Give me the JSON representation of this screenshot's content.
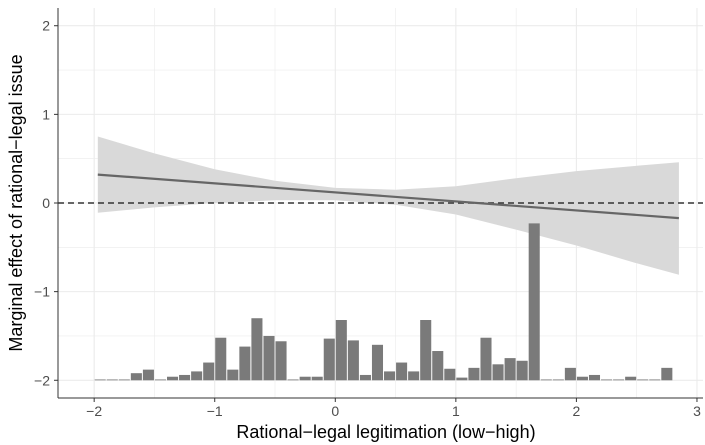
{
  "chart_data": {
    "type": "line",
    "title": "",
    "xlabel": "Rational−legal legitimation (low−high)",
    "ylabel": "Marginal effect of rational−legal issue",
    "xlim": [
      -2.3,
      3.05
    ],
    "ylim": [
      -2.2,
      2.2
    ],
    "x_ticks": [
      -2,
      -1,
      0,
      1,
      2,
      3
    ],
    "x_tick_labels": [
      "−2",
      "−1",
      "0",
      "1",
      "2",
      "3"
    ],
    "y_ticks": [
      -2,
      -1,
      0,
      1,
      2
    ],
    "y_tick_labels": [
      "−2",
      "−1",
      "0",
      "1",
      "2"
    ],
    "grid": true,
    "reference_line": {
      "y": 0,
      "style": "dashed"
    },
    "series": [
      {
        "type": "line",
        "x": [
          -1.97,
          2.85
        ],
        "y": [
          0.32,
          -0.17
        ]
      }
    ],
    "confidence_band": {
      "x": [
        -1.97,
        -1.5,
        -1.0,
        -0.5,
        0.0,
        0.5,
        1.0,
        1.5,
        2.0,
        2.5,
        2.85
      ],
      "upper": [
        0.75,
        0.56,
        0.38,
        0.25,
        0.17,
        0.15,
        0.19,
        0.28,
        0.36,
        0.42,
        0.46
      ],
      "lower": [
        -0.11,
        -0.05,
        0.0,
        0.03,
        0.03,
        -0.02,
        -0.13,
        -0.3,
        -0.48,
        -0.68,
        -0.81
      ]
    },
    "histogram": {
      "bin_width": 0.1,
      "baseline_y": -2.0,
      "x": [
        -1.95,
        -1.85,
        -1.75,
        -1.65,
        -1.55,
        -1.45,
        -1.35,
        -1.25,
        -1.15,
        -1.05,
        -0.95,
        -0.85,
        -0.75,
        -0.65,
        -0.55,
        -0.45,
        -0.35,
        -0.25,
        -0.15,
        -0.05,
        0.05,
        0.15,
        0.25,
        0.35,
        0.45,
        0.55,
        0.65,
        0.75,
        0.85,
        0.95,
        1.05,
        1.15,
        1.25,
        1.35,
        1.45,
        1.55,
        1.65,
        1.75,
        1.85,
        1.95,
        2.05,
        2.15,
        2.25,
        2.35,
        2.45,
        2.55,
        2.65,
        2.75
      ],
      "top": [
        -2.0,
        -2.0,
        -2.0,
        -1.92,
        -1.88,
        -2.0,
        -1.96,
        -1.94,
        -1.9,
        -1.8,
        -1.52,
        -1.88,
        -1.62,
        -1.3,
        -1.5,
        -1.56,
        -2.0,
        -1.96,
        -1.96,
        -1.53,
        -1.32,
        -1.55,
        -1.94,
        -1.6,
        -1.9,
        -1.8,
        -1.9,
        -1.32,
        -1.67,
        -1.87,
        -1.97,
        -1.86,
        -1.52,
        -1.82,
        -1.75,
        -1.78,
        -0.23,
        -2.0,
        -2.0,
        -1.86,
        -1.96,
        -1.94,
        -2.0,
        -2.0,
        -1.96,
        -2.0,
        -2.0,
        -1.86
      ]
    },
    "colors": {
      "line": "#666666",
      "band": "#d9d9d9",
      "bars": "#7a7a7a",
      "grid": "#ebebeb",
      "reference": "#333333"
    }
  }
}
